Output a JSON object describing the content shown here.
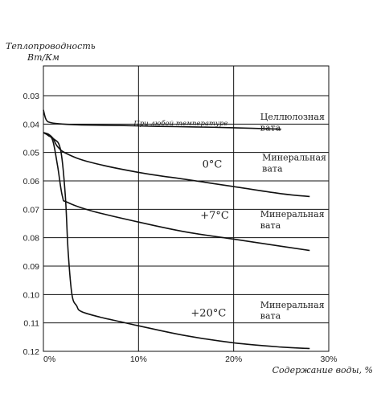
{
  "chart_data": {
    "type": "line",
    "ylabel": "Теплопроводность",
    "yunit": "Вт/Км",
    "xlabel": "Содержание воды, %",
    "xlim": [
      0,
      30
    ],
    "ylim": [
      0.03,
      0.12
    ],
    "y_inverted": true,
    "x_ticks": [
      "0%",
      "10%",
      "20%",
      "30%"
    ],
    "x_tick_values": [
      0,
      10,
      20,
      30
    ],
    "y_ticks": [
      "0.03",
      "0.04",
      "0.05",
      "0.06",
      "0.07",
      "0.08",
      "0.09",
      "0.10",
      "0.11",
      "0.12"
    ],
    "y_tick_values": [
      0.03,
      0.04,
      0.05,
      0.06,
      0.07,
      0.08,
      0.09,
      0.1,
      0.11,
      0.12
    ],
    "grid": true,
    "series": [
      {
        "x": [
          0,
          0.3,
          0.8,
          2,
          4,
          8,
          12,
          16,
          20,
          25
        ],
        "y": [
          0.035,
          0.0385,
          0.0395,
          0.04,
          0.0403,
          0.0405,
          0.0408,
          0.041,
          0.0413,
          0.0418
        ]
      },
      {
        "x": [
          0,
          0.5,
          1,
          1.5,
          2.5,
          5,
          10,
          15,
          20,
          25,
          28
        ],
        "y": [
          0.043,
          0.0435,
          0.045,
          0.048,
          0.0505,
          0.0535,
          0.057,
          0.0595,
          0.062,
          0.0645,
          0.0655
        ]
      },
      {
        "x": [
          0,
          0.5,
          1,
          1.5,
          2,
          2.5,
          5,
          10,
          15,
          20,
          25,
          28
        ],
        "y": [
          0.043,
          0.044,
          0.046,
          0.055,
          0.0655,
          0.0675,
          0.0705,
          0.0745,
          0.078,
          0.0805,
          0.083,
          0.0845
        ]
      },
      {
        "x": [
          0,
          1,
          1.8,
          2.3,
          2.6,
          3,
          3.5,
          4,
          6,
          8,
          10,
          15,
          20,
          25,
          28
        ],
        "y": [
          0.043,
          0.045,
          0.049,
          0.065,
          0.085,
          0.1,
          0.104,
          0.106,
          0.108,
          0.1095,
          0.111,
          0.1145,
          0.117,
          0.1185,
          0.119
        ]
      }
    ],
    "annotations": [
      {
        "text": "Целлюлозная",
        "x": 22.8,
        "y": 0.0385
      },
      {
        "text": "вата",
        "x": 22.8,
        "y": 0.0423
      },
      {
        "text": "При любой температуре",
        "x": 9.5,
        "y": 0.0405
      },
      {
        "text": "0°C",
        "x": 16.7,
        "y": 0.0554
      },
      {
        "text": "Минеральная",
        "x": 23.0,
        "y": 0.0528
      },
      {
        "text": "вата",
        "x": 23.0,
        "y": 0.0567
      },
      {
        "text": "+7°C",
        "x": 16.5,
        "y": 0.0733
      },
      {
        "text": "Минеральная",
        "x": 22.8,
        "y": 0.0728
      },
      {
        "text": "вата",
        "x": 22.8,
        "y": 0.0767
      },
      {
        "text": "+20°C",
        "x": 15.5,
        "y": 0.1077
      },
      {
        "text": "Минеральная",
        "x": 22.8,
        "y": 0.1047
      },
      {
        "text": "вата",
        "x": 22.8,
        "y": 0.1085
      }
    ]
  }
}
